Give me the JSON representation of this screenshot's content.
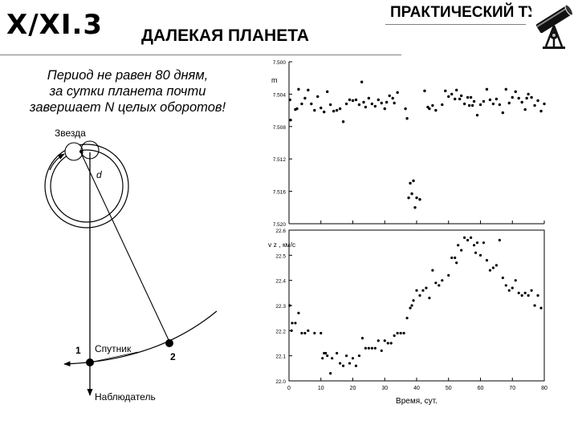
{
  "header": {
    "code": "X/XI.3",
    "title": "ДАЛЕКАЯ ПЛАНЕТА",
    "tour": "ПРАКТИЧЕСКИЙ ТУР",
    "logo_icon": "telescope-icon"
  },
  "note": {
    "line1": "Период не равен 80 дням,",
    "line2": "за сутки планета почти",
    "line3": "завершает N целых оборотов!"
  },
  "diagram": {
    "star_label": "Звезда",
    "distance_label": "d",
    "satellite_label": "Спутник",
    "observer_label": "Наблюдатель",
    "point1_label": "1",
    "point2_label": "2"
  },
  "chart_data": [
    {
      "type": "scatter",
      "ylabel": "m",
      "ylim": [
        7.5,
        7.52
      ],
      "y_inverted": true,
      "yticks": [
        "7.500",
        "7.504",
        "7.508",
        "7.512",
        "7.516",
        "7.520"
      ],
      "grid": false,
      "points": [
        [
          0.3,
          7.5047
        ],
        [
          0.5,
          7.5072
        ],
        [
          2,
          7.5059
        ],
        [
          2.5,
          7.5058
        ],
        [
          3,
          7.5034
        ],
        [
          4,
          7.5052
        ],
        [
          5,
          7.5045
        ],
        [
          6,
          7.5035
        ],
        [
          7,
          7.5052
        ],
        [
          8,
          7.506
        ],
        [
          9,
          7.5043
        ],
        [
          10,
          7.5057
        ],
        [
          11,
          7.5062
        ],
        [
          12,
          7.5037
        ],
        [
          13,
          7.5053
        ],
        [
          14,
          7.5061
        ],
        [
          15,
          7.506
        ],
        [
          16,
          7.5058
        ],
        [
          17,
          7.5074
        ],
        [
          18,
          7.5052
        ],
        [
          19,
          7.5047
        ],
        [
          20,
          7.5048
        ],
        [
          21,
          7.5047
        ],
        [
          22,
          7.5053
        ],
        [
          22.8,
          7.5025
        ],
        [
          23.4,
          7.505
        ],
        [
          24,
          7.5056
        ],
        [
          25,
          7.5045
        ],
        [
          26,
          7.5052
        ],
        [
          27,
          7.5055
        ],
        [
          28,
          7.5047
        ],
        [
          29,
          7.5051
        ],
        [
          30,
          7.5058
        ],
        [
          30.6,
          7.505
        ],
        [
          31.5,
          7.5042
        ],
        [
          32.5,
          7.5045
        ],
        [
          33,
          7.5051
        ],
        [
          34,
          7.5038
        ],
        [
          36.5,
          7.5058
        ],
        [
          37,
          7.507
        ],
        [
          37.5,
          7.5168
        ],
        [
          38,
          7.515
        ],
        [
          38.5,
          7.5163
        ],
        [
          39,
          7.5147
        ],
        [
          39.5,
          7.518
        ],
        [
          40,
          7.5168
        ],
        [
          41,
          7.517
        ],
        [
          42.5,
          7.5036
        ],
        [
          43.5,
          7.5056
        ],
        [
          44,
          7.5058
        ],
        [
          45,
          7.5054
        ],
        [
          46,
          7.506
        ],
        [
          48,
          7.5053
        ],
        [
          49,
          7.5036
        ],
        [
          50,
          7.5043
        ],
        [
          51,
          7.504
        ],
        [
          52,
          7.5046
        ],
        [
          52.5,
          7.5035
        ],
        [
          53.5,
          7.5046
        ],
        [
          54,
          7.5042
        ],
        [
          55,
          7.5052
        ],
        [
          56,
          7.5044
        ],
        [
          56.5,
          7.5054
        ],
        [
          57,
          7.5044
        ],
        [
          57.5,
          7.5054
        ],
        [
          58,
          7.5049
        ],
        [
          59,
          7.5066
        ],
        [
          60,
          7.5053
        ],
        [
          61,
          7.5049
        ],
        [
          62,
          7.5034
        ],
        [
          63,
          7.5047
        ],
        [
          64,
          7.5052
        ],
        [
          65,
          7.5046
        ],
        [
          66,
          7.5053
        ],
        [
          67,
          7.5063
        ],
        [
          68,
          7.5034
        ],
        [
          69,
          7.5051
        ],
        [
          70,
          7.5044
        ],
        [
          71,
          7.5037
        ],
        [
          72,
          7.5045
        ],
        [
          73,
          7.505
        ],
        [
          74,
          7.5059
        ],
        [
          74.5,
          7.5045
        ],
        [
          75,
          7.504
        ],
        [
          76,
          7.5044
        ],
        [
          77,
          7.5054
        ],
        [
          78,
          7.5048
        ],
        [
          79,
          7.5061
        ],
        [
          80,
          7.5052
        ]
      ]
    },
    {
      "type": "scatter",
      "ylabel": "v z , км/с",
      "xlabel": "Время, сут.",
      "xlim": [
        0,
        80
      ],
      "ylim": [
        22.0,
        22.6
      ],
      "xticks": [
        "0",
        "10",
        "20",
        "30",
        "40",
        "50",
        "60",
        "70",
        "80"
      ],
      "yticks": [
        "22.0",
        "22.1",
        "22.2",
        "22.3",
        "22.4",
        "22.5",
        "22.6"
      ],
      "grid": false,
      "points": [
        [
          0.2,
          22.3
        ],
        [
          0.8,
          22.2
        ],
        [
          1,
          22.23
        ],
        [
          2,
          22.23
        ],
        [
          3,
          22.27
        ],
        [
          4,
          22.19
        ],
        [
          5,
          22.19
        ],
        [
          6,
          22.2
        ],
        [
          8,
          22.19
        ],
        [
          10,
          22.19
        ],
        [
          10.5,
          22.09
        ],
        [
          11,
          22.11
        ],
        [
          11.5,
          22.11
        ],
        [
          12,
          22.1
        ],
        [
          13,
          22.03
        ],
        [
          13.5,
          22.09
        ],
        [
          15,
          22.11
        ],
        [
          16,
          22.07
        ],
        [
          17,
          22.06
        ],
        [
          18,
          22.1
        ],
        [
          19,
          22.07
        ],
        [
          20,
          22.09
        ],
        [
          21,
          22.06
        ],
        [
          22,
          22.1
        ],
        [
          23,
          22.17
        ],
        [
          24,
          22.13
        ],
        [
          25,
          22.13
        ],
        [
          26,
          22.13
        ],
        [
          27,
          22.13
        ],
        [
          28,
          22.16
        ],
        [
          29,
          22.12
        ],
        [
          30,
          22.16
        ],
        [
          31,
          22.15
        ],
        [
          32,
          22.15
        ],
        [
          33,
          22.18
        ],
        [
          34,
          22.19
        ],
        [
          35,
          22.19
        ],
        [
          36,
          22.19
        ],
        [
          37,
          22.25
        ],
        [
          38,
          22.29
        ],
        [
          38.5,
          22.3
        ],
        [
          39,
          22.32
        ],
        [
          40,
          22.36
        ],
        [
          41,
          22.34
        ],
        [
          42,
          22.36
        ],
        [
          43,
          22.37
        ],
        [
          44,
          22.33
        ],
        [
          45,
          22.44
        ],
        [
          46,
          22.39
        ],
        [
          47,
          22.38
        ],
        [
          48,
          22.4
        ],
        [
          50,
          22.42
        ],
        [
          51,
          22.49
        ],
        [
          52,
          22.49
        ],
        [
          52.5,
          22.47
        ],
        [
          53,
          22.54
        ],
        [
          54,
          22.52
        ],
        [
          55,
          22.57
        ],
        [
          56,
          22.56
        ],
        [
          57,
          22.57
        ],
        [
          58,
          22.54
        ],
        [
          58.5,
          22.51
        ],
        [
          59,
          22.55
        ],
        [
          60,
          22.5
        ],
        [
          61,
          22.55
        ],
        [
          62,
          22.48
        ],
        [
          63,
          22.44
        ],
        [
          64,
          22.45
        ],
        [
          65,
          22.46
        ],
        [
          66,
          22.56
        ],
        [
          67,
          22.41
        ],
        [
          68,
          22.38
        ],
        [
          69,
          22.36
        ],
        [
          70,
          22.37
        ],
        [
          71,
          22.4
        ],
        [
          72,
          22.35
        ],
        [
          73,
          22.34
        ],
        [
          74,
          22.35
        ],
        [
          75,
          22.34
        ],
        [
          76,
          22.36
        ],
        [
          77,
          22.3
        ],
        [
          78,
          22.34
        ],
        [
          79,
          22.29
        ]
      ]
    }
  ]
}
